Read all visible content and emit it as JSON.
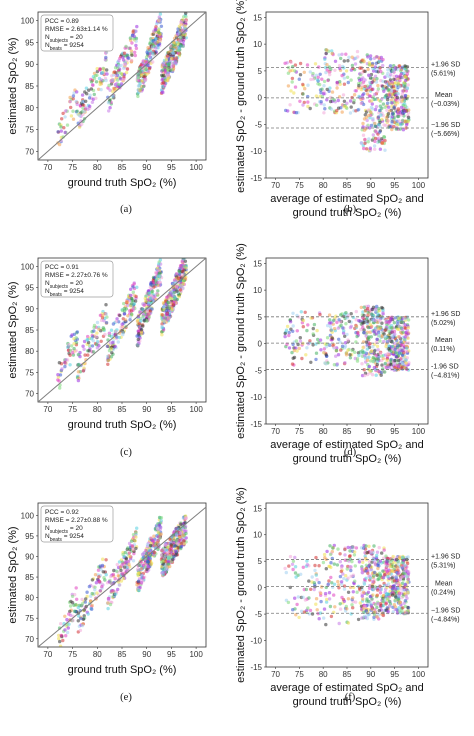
{
  "figure": {
    "colors": {
      "identity_line": "#7f7f7f",
      "sd_line": "#777777",
      "frame": "#333333",
      "stats_box_border": "#9e9e9e",
      "palette": [
        "#9a2de0",
        "#c77ae8",
        "#f2a7d8",
        "#55d0e0",
        "#7dd87a",
        "#f0e050",
        "#f2a050",
        "#d23030",
        "#3b5bd0",
        "#44b060",
        "#2f2f2f",
        "#e040c0",
        "#a0d0f0"
      ]
    }
  },
  "chart_data": [
    {
      "type": "scatter",
      "panel": "a",
      "panel_label": "(a)",
      "xlabel": "ground truth SpO₂ (%)",
      "ylabel": "estimated SpO₂ (%)",
      "xlim": [
        68,
        102
      ],
      "ylim": [
        68,
        102
      ],
      "xticks": [
        70,
        75,
        80,
        85,
        90,
        95,
        100
      ],
      "yticks": [
        70,
        75,
        80,
        85,
        90,
        95,
        100
      ],
      "identity_line": true,
      "stats": [
        "PCC = 0.89",
        "RMSE = 2.63±1.14 %",
        "N_subjects = 20",
        "N_beats = 9254"
      ],
      "point_clusters": [
        {
          "x": [
            72,
            76
          ],
          "y": [
            74,
            82
          ],
          "n": 40
        },
        {
          "x": [
            76,
            82
          ],
          "y": [
            78,
            90
          ],
          "n": 90
        },
        {
          "x": [
            82,
            88
          ],
          "y": [
            82,
            96
          ],
          "n": 140
        },
        {
          "x": [
            88,
            93
          ],
          "y": [
            84,
            99
          ],
          "n": 220
        },
        {
          "x": [
            93,
            98
          ],
          "y": [
            86,
            99
          ],
          "n": 300
        }
      ]
    },
    {
      "type": "scatter",
      "panel": "b",
      "panel_label": "(b)",
      "plot_kind": "bland-altman",
      "xlabel": "average of estimated SpO₂ and ground truth SpO₂ (%)",
      "ylabel": "estimated SpO₂ - ground truth SpO₂ (%)",
      "xlim": [
        68,
        102
      ],
      "ylim": [
        -15,
        16
      ],
      "xticks": [
        70,
        75,
        80,
        85,
        90,
        95,
        100
      ],
      "yticks": [
        -15,
        -10,
        -5,
        0,
        5,
        10,
        15
      ],
      "upper_loa": 5.61,
      "mean_bias": -0.03,
      "lower_loa": -5.66,
      "upper_label": "+1.96 SD",
      "upper_value": "(5.61%)",
      "mean_label": "Mean",
      "mean_value": "(−0.03%)",
      "lower_label": "−1.96 SD",
      "lower_value": "(−5.66%)",
      "point_clusters": [
        {
          "x": [
            72,
            80
          ],
          "y": [
            -3,
            7
          ],
          "n": 70
        },
        {
          "x": [
            80,
            88
          ],
          "y": [
            -3,
            9
          ],
          "n": 130
        },
        {
          "x": [
            88,
            93
          ],
          "y": [
            -10,
            8
          ],
          "n": 220
        },
        {
          "x": [
            93,
            98
          ],
          "y": [
            -6,
            6
          ],
          "n": 280
        }
      ]
    },
    {
      "type": "scatter",
      "panel": "c",
      "panel_label": "(c)",
      "xlabel": "ground truth SpO₂ (%)",
      "ylabel": "estimated SpO₂ (%)",
      "xlim": [
        68,
        102
      ],
      "ylim": [
        68,
        102
      ],
      "xticks": [
        70,
        75,
        80,
        85,
        90,
        95,
        100
      ],
      "yticks": [
        70,
        75,
        80,
        85,
        90,
        95,
        100
      ],
      "identity_line": true,
      "stats": [
        "PCC = 0.91",
        "RMSE = 2.27±0.76 %",
        "N_subjects = 20",
        "N_beats = 9254"
      ],
      "point_clusters": [
        {
          "x": [
            72,
            76
          ],
          "y": [
            73,
            84
          ],
          "n": 50
        },
        {
          "x": [
            76,
            82
          ],
          "y": [
            76,
            88
          ],
          "n": 90
        },
        {
          "x": [
            82,
            88
          ],
          "y": [
            80,
            94
          ],
          "n": 140
        },
        {
          "x": [
            88,
            93
          ],
          "y": [
            84,
            99
          ],
          "n": 220
        },
        {
          "x": [
            93,
            98
          ],
          "y": [
            87,
            100
          ],
          "n": 300
        }
      ]
    },
    {
      "type": "scatter",
      "panel": "d",
      "panel_label": "(d)",
      "plot_kind": "bland-altman",
      "xlabel": "average of estimated SpO₂ and ground truth SpO₂ (%)",
      "ylabel": "estimated SpO₂ - ground truth SpO₂ (%)",
      "xlim": [
        68,
        102
      ],
      "ylim": [
        -15,
        16
      ],
      "xticks": [
        70,
        75,
        80,
        85,
        90,
        95,
        100
      ],
      "yticks": [
        -15,
        -10,
        -5,
        0,
        5,
        10,
        15
      ],
      "upper_loa": 5.02,
      "mean_bias": 0.11,
      "lower_loa": -4.81,
      "upper_label": "+1.96 SD",
      "upper_value": "(5.02%)",
      "mean_label": "Mean",
      "mean_value": "(0.11%)",
      "lower_label": "-1.96 SD",
      "lower_value": "(−4.81%)",
      "point_clusters": [
        {
          "x": [
            72,
            80
          ],
          "y": [
            -4,
            6
          ],
          "n": 70
        },
        {
          "x": [
            80,
            88
          ],
          "y": [
            -4,
            6
          ],
          "n": 130
        },
        {
          "x": [
            88,
            93
          ],
          "y": [
            -6,
            7
          ],
          "n": 220
        },
        {
          "x": [
            93,
            98
          ],
          "y": [
            -5,
            5
          ],
          "n": 280
        }
      ]
    },
    {
      "type": "scatter",
      "panel": "e",
      "panel_label": "(e)",
      "xlabel": "ground truth SpO₂ (%)",
      "ylabel": "estimated SpO₂ (%)",
      "xlim": [
        68,
        102
      ],
      "ylim": [
        68,
        103
      ],
      "xticks": [
        70,
        75,
        80,
        85,
        90,
        95,
        100
      ],
      "yticks": [
        70,
        75,
        80,
        85,
        90,
        95,
        100
      ],
      "identity_line": true,
      "stats": [
        "PCC = 0.92",
        "RMSE = 2.27±0.88 %",
        "N_subjects = 20",
        "N_beats = 9254"
      ],
      "point_clusters": [
        {
          "x": [
            72,
            76
          ],
          "y": [
            70,
            80
          ],
          "n": 50
        },
        {
          "x": [
            76,
            82
          ],
          "y": [
            74,
            88
          ],
          "n": 90
        },
        {
          "x": [
            82,
            88
          ],
          "y": [
            80,
            94
          ],
          "n": 140
        },
        {
          "x": [
            88,
            93
          ],
          "y": [
            84,
            97
          ],
          "n": 220
        },
        {
          "x": [
            93,
            98
          ],
          "y": [
            88,
            97
          ],
          "n": 300
        }
      ]
    },
    {
      "type": "scatter",
      "panel": "f",
      "panel_label": "(f)",
      "plot_kind": "bland-altman",
      "xlabel": "average of estimated SpO₂ and ground truth SpO₂ (%)",
      "ylabel": "estimated SpO₂ - ground truth SpO₂ (%)",
      "xlim": [
        68,
        102
      ],
      "ylim": [
        -15,
        16
      ],
      "xticks": [
        70,
        75,
        80,
        85,
        90,
        95,
        100
      ],
      "yticks": [
        -15,
        -10,
        -5,
        0,
        5,
        10,
        15
      ],
      "upper_loa": 5.31,
      "mean_bias": 0.24,
      "lower_loa": -4.84,
      "upper_label": "+1.96 SD",
      "upper_value": "(5.31%)",
      "mean_label": "Mean",
      "mean_value": "(0.24%)",
      "lower_label": "−1.96 SD",
      "lower_value": "(−4.84%)",
      "point_clusters": [
        {
          "x": [
            72,
            80
          ],
          "y": [
            -6,
            6
          ],
          "n": 70
        },
        {
          "x": [
            80,
            88
          ],
          "y": [
            -7,
            8
          ],
          "n": 130
        },
        {
          "x": [
            88,
            93
          ],
          "y": [
            -6,
            8
          ],
          "n": 220
        },
        {
          "x": [
            93,
            98
          ],
          "y": [
            -5,
            6
          ],
          "n": 280
        }
      ]
    }
  ]
}
